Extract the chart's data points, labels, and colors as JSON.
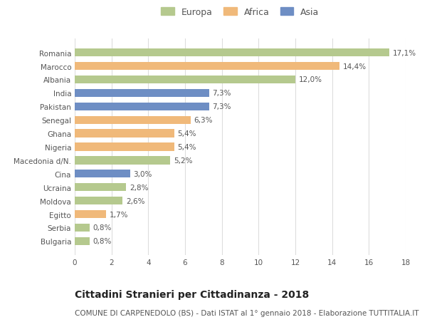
{
  "categories": [
    "Romania",
    "Marocco",
    "Albania",
    "India",
    "Pakistan",
    "Senegal",
    "Ghana",
    "Nigeria",
    "Macedonia d/N.",
    "Cina",
    "Ucraina",
    "Moldova",
    "Egitto",
    "Serbia",
    "Bulgaria"
  ],
  "values": [
    17.1,
    14.4,
    12.0,
    7.3,
    7.3,
    6.3,
    5.4,
    5.4,
    5.2,
    3.0,
    2.8,
    2.6,
    1.7,
    0.8,
    0.8
  ],
  "labels": [
    "17,1%",
    "14,4%",
    "12,0%",
    "7,3%",
    "7,3%",
    "6,3%",
    "5,4%",
    "5,4%",
    "5,2%",
    "3,0%",
    "2,8%",
    "2,6%",
    "1,7%",
    "0,8%",
    "0,8%"
  ],
  "continents": [
    "Europa",
    "Africa",
    "Europa",
    "Asia",
    "Asia",
    "Africa",
    "Africa",
    "Africa",
    "Europa",
    "Asia",
    "Europa",
    "Europa",
    "Africa",
    "Europa",
    "Europa"
  ],
  "colors": {
    "Europa": "#b5c98e",
    "Africa": "#f0b97a",
    "Asia": "#6e8ec4"
  },
  "legend_labels": [
    "Europa",
    "Africa",
    "Asia"
  ],
  "xlim": [
    0,
    18
  ],
  "xticks": [
    0,
    2,
    4,
    6,
    8,
    10,
    12,
    14,
    16,
    18
  ],
  "title": "Cittadini Stranieri per Cittadinanza - 2018",
  "subtitle": "COMUNE DI CARPENEDOLO (BS) - Dati ISTAT al 1° gennaio 2018 - Elaborazione TUTTITALIA.IT",
  "title_fontsize": 10,
  "subtitle_fontsize": 7.5,
  "bar_height": 0.6,
  "background_color": "#ffffff",
  "grid_color": "#dddddd",
  "label_fontsize": 7.5,
  "tick_fontsize": 7.5,
  "legend_fontsize": 9
}
